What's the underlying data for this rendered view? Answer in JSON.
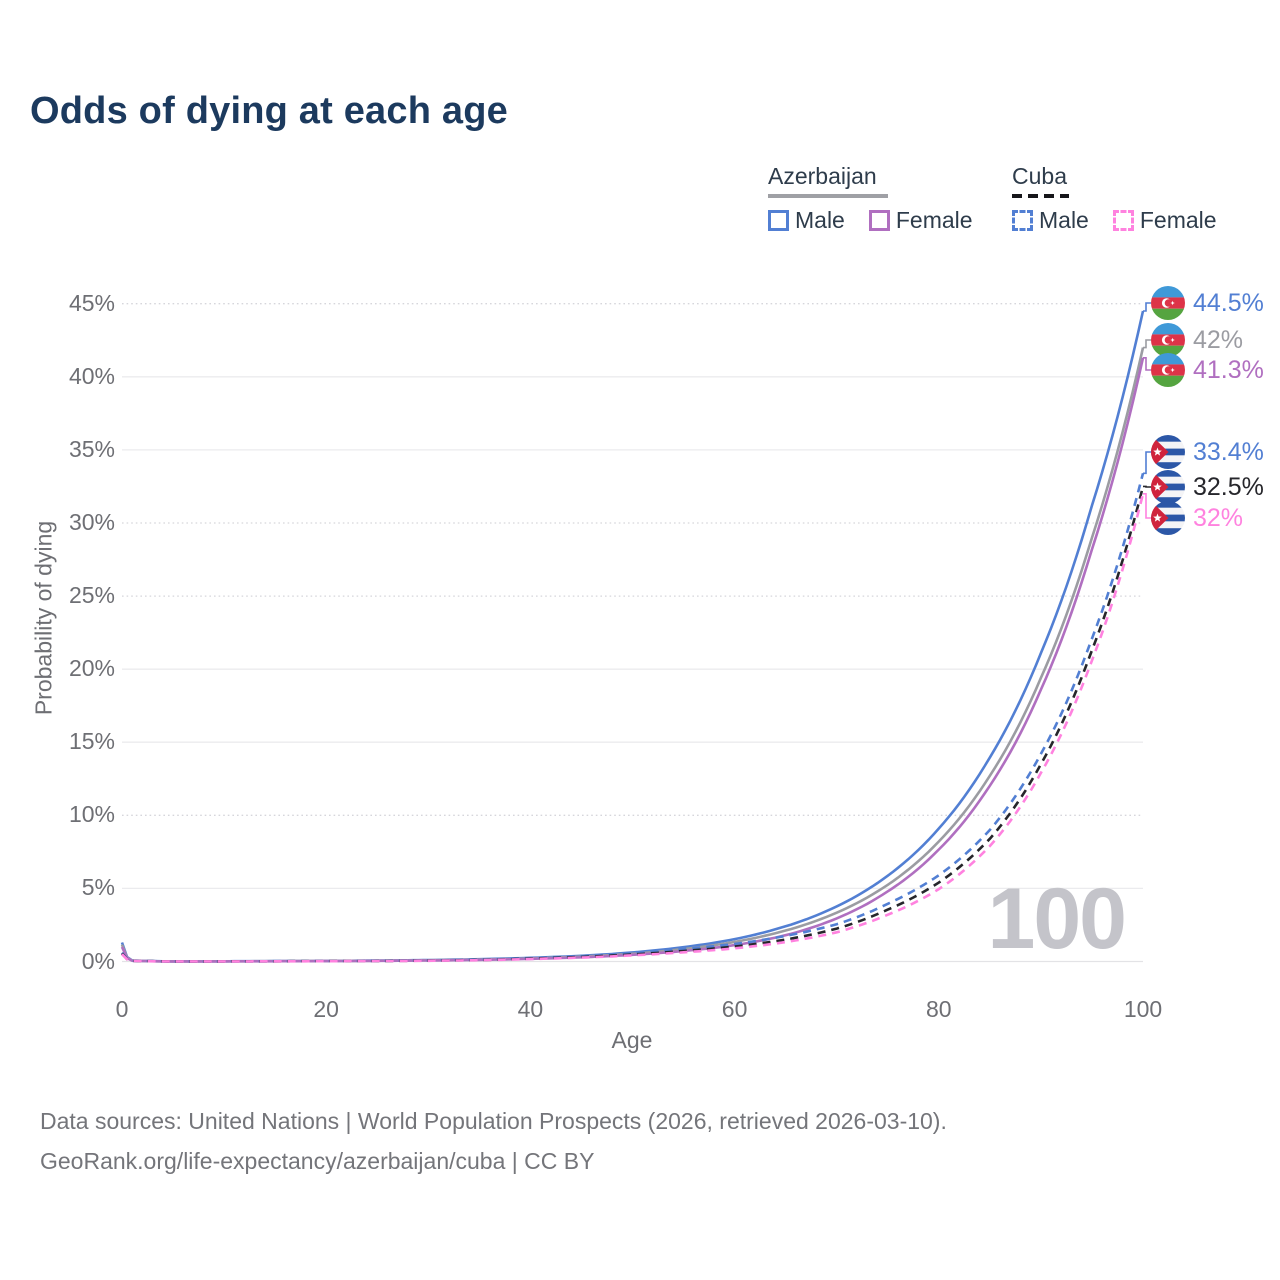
{
  "header": {
    "title": "Odds of dying at each age"
  },
  "legend": {
    "groups": [
      {
        "name": "Azerbaijan",
        "line_style": "solid",
        "line_color": "#9fa0a5",
        "items": [
          {
            "label": "Male",
            "color": "#527fd3",
            "dash": "solid"
          },
          {
            "label": "Female",
            "color": "#b06fc0",
            "dash": "solid"
          }
        ]
      },
      {
        "name": "Cuba",
        "line_style": "dashed",
        "line_color": "#16161a",
        "items": [
          {
            "label": "Male",
            "color": "#527fd3",
            "dash": "dashed"
          },
          {
            "label": "Female",
            "color": "#ff82df",
            "dash": "dashed"
          }
        ]
      }
    ]
  },
  "axes": {
    "x_label": "Age",
    "y_label": "Probability of dying"
  },
  "age_counter": "100",
  "footer": {
    "line1": "Data sources: United Nations | World Population Prospects (2026, retrieved 2026-03-10).",
    "line2": "GeoRank.org/life-expectancy/azerbaijan/cuba | CC BY"
  },
  "chart_data": {
    "type": "line",
    "title": "Odds of dying at each age",
    "xlabel": "Age",
    "ylabel": "Probability of dying",
    "xlim": [
      0,
      100
    ],
    "ylim_pct": [
      0,
      45
    ],
    "x_ticks": [
      0,
      20,
      40,
      60,
      80,
      100
    ],
    "y_ticks_pct": [
      0,
      5,
      10,
      15,
      20,
      25,
      30,
      35,
      40,
      45
    ],
    "grid": "horizontal",
    "legend_position": "top-right",
    "ages": [
      0,
      1,
      5,
      10,
      15,
      20,
      25,
      30,
      35,
      40,
      45,
      50,
      55,
      60,
      65,
      70,
      75,
      80,
      85,
      90,
      95,
      100
    ],
    "series": [
      {
        "name": "Azerbaijan Male",
        "country": "Azerbaijan",
        "sex": "Male",
        "flag": "az",
        "style": "solid",
        "color": "#527fd3",
        "end_label": "44.5%",
        "end_value_pct": 44.5,
        "values_pct": [
          1.3,
          0.07,
          0.01,
          0.016,
          0.026,
          0.041,
          0.064,
          0.101,
          0.16,
          0.25,
          0.39,
          0.62,
          0.98,
          1.53,
          2.41,
          3.77,
          5.87,
          9.1,
          13.96,
          21.1,
          31.2,
          44.5
        ]
      },
      {
        "name": "Azerbaijan Both sexes",
        "country": "Azerbaijan",
        "sex": "Both",
        "flag": "az",
        "style": "solid",
        "color": "#9b9ca2",
        "end_label": "42%",
        "end_value_pct": 42,
        "values_pct": [
          1.15,
          0.06,
          0.008,
          0.013,
          0.021,
          0.033,
          0.053,
          0.084,
          0.13,
          0.21,
          0.34,
          0.53,
          0.85,
          1.34,
          2.12,
          3.34,
          5.25,
          8.21,
          12.71,
          19.4,
          29.0,
          42.0
        ]
      },
      {
        "name": "Azerbaijan Female",
        "country": "Azerbaijan",
        "sex": "Female",
        "flag": "az",
        "style": "solid",
        "color": "#b06fc0",
        "end_label": "41.3%",
        "end_value_pct": 41.3,
        "values_pct": [
          1.0,
          0.055,
          0.006,
          0.01,
          0.017,
          0.027,
          0.043,
          0.069,
          0.11,
          0.18,
          0.29,
          0.46,
          0.72,
          1.12,
          1.8,
          2.95,
          4.8,
          7.66,
          12.03,
          18.6,
          28.2,
          41.3
        ]
      },
      {
        "name": "Cuba Male",
        "country": "Cuba",
        "sex": "Male",
        "flag": "cu",
        "style": "dashed",
        "color": "#527fd3",
        "end_label": "33.4%",
        "end_value_pct": 33.4,
        "values_pct": [
          0.6,
          0.05,
          0.008,
          0.011,
          0.018,
          0.028,
          0.045,
          0.07,
          0.12,
          0.24,
          0.38,
          0.58,
          0.85,
          1.2,
          1.75,
          2.55,
          3.95,
          5.9,
          9.0,
          14.2,
          22.1,
          33.4
        ]
      },
      {
        "name": "Cuba Both sexes",
        "country": "Cuba",
        "sex": "Both",
        "flag": "cu",
        "style": "dashed",
        "color": "#26262b",
        "end_label": "32.5%",
        "end_value_pct": 32.5,
        "values_pct": [
          0.55,
          0.045,
          0.007,
          0.01,
          0.015,
          0.024,
          0.038,
          0.06,
          0.1,
          0.2,
          0.31,
          0.48,
          0.72,
          1.02,
          1.5,
          2.25,
          3.55,
          5.4,
          8.4,
          13.5,
          21.3,
          32.5
        ]
      },
      {
        "name": "Cuba Female",
        "country": "Cuba",
        "sex": "Female",
        "flag": "cu",
        "style": "dashed",
        "color": "#ff82df",
        "end_label": "32%",
        "end_value_pct": 32,
        "values_pct": [
          0.5,
          0.04,
          0.006,
          0.008,
          0.013,
          0.02,
          0.032,
          0.05,
          0.09,
          0.17,
          0.27,
          0.42,
          0.63,
          0.9,
          1.33,
          2.0,
          3.2,
          4.95,
          7.9,
          12.9,
          20.6,
          32.0
        ]
      }
    ]
  }
}
